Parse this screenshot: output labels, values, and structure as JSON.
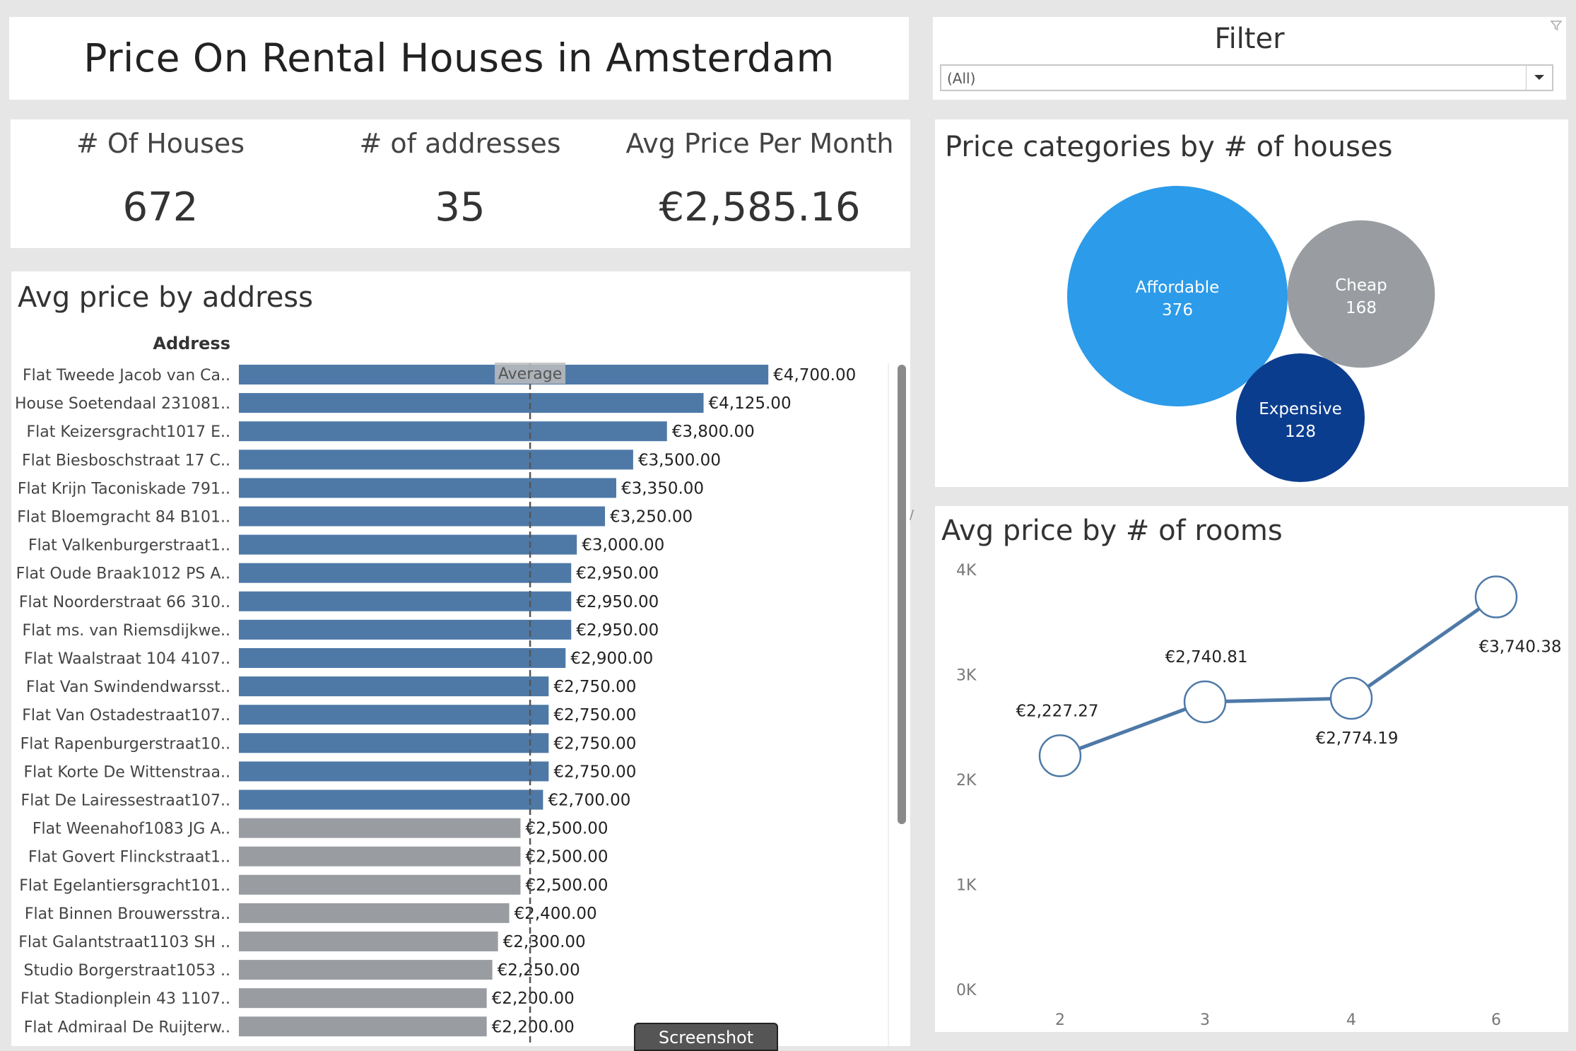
{
  "title": "Price On Rental Houses in Amsterdam",
  "filter": {
    "title": "Filter",
    "selected": "(All)",
    "icon": "filter-funnel-icon"
  },
  "kpis": [
    {
      "label": "# Of Houses",
      "value": "672"
    },
    {
      "label": "# of addresses",
      "value": "35"
    },
    {
      "label": "Avg Price Per Month",
      "value": "€2,585.16"
    }
  ],
  "bubble_title": "Price categories by # of houses",
  "bar_title": "Avg price by address",
  "line_title": "Avg price by # of rooms",
  "screenshot_button": "Screenshot",
  "colors": {
    "bar_above": "#4e79a7",
    "bar_below": "#999da2",
    "affordable": "#2c9be9",
    "cheap": "#999da2",
    "expensive": "#0b3d8f",
    "line": "#4e79a7"
  },
  "chart_data": [
    {
      "type": "bar",
      "title": "Avg price by address",
      "xlabel": "",
      "ylabel": "Address",
      "reference_line": {
        "label": "Average",
        "value": 2585.16
      },
      "xlim": [
        0,
        5000
      ],
      "categories": [
        "Flat Tweede Jacob van Ca..",
        "House Soetendaal 231081..",
        "Flat Keizersgracht1017 E..",
        "Flat Biesboschstraat 17 C..",
        "Flat Krijn Taconiskade 791..",
        "Flat Bloemgracht 84 B101..",
        "Flat Valkenburgerstraat1..",
        "Flat Oude Braak1012 PS A..",
        "Flat Noorderstraat 66 310..",
        "Flat ms. van Riemsdijkwe..",
        "Flat Waalstraat 104 4107..",
        "Flat Van Swindendwarsst..",
        "Flat Van Ostadestraat107..",
        "Flat Rapenburgerstraat10..",
        "Flat Korte De Wittenstraa..",
        "Flat De Lairessestraat107..",
        "Flat Weenahof1083 JG A..",
        "Flat Govert Flinckstraat1..",
        "Flat Egelantiersgracht101..",
        "Flat Binnen Brouwersstra..",
        "Flat Galantstraat1103 SH ..",
        "Studio Borgerstraat1053 ..",
        "Flat Stadionplein 43 1107..",
        "Flat Admiraal De Ruijterw.."
      ],
      "values": [
        4700,
        4125,
        3800,
        3500,
        3350,
        3250,
        3000,
        2950,
        2950,
        2950,
        2900,
        2750,
        2750,
        2750,
        2750,
        2700,
        2500,
        2500,
        2500,
        2400,
        2300,
        2250,
        2200,
        2200
      ],
      "value_labels": [
        "€4,700.00",
        "€4,125.00",
        "€3,800.00",
        "€3,500.00",
        "€3,350.00",
        "€3,250.00",
        "€3,000.00",
        "€2,950.00",
        "€2,950.00",
        "€2,950.00",
        "€2,900.00",
        "€2,750.00",
        "€2,750.00",
        "€2,750.00",
        "€2,750.00",
        "€2,700.00",
        "€2,500.00",
        "€2,500.00",
        "€2,500.00",
        "€2,400.00",
        "€2,300.00",
        "€2,250.00",
        "€2,200.00",
        "€2,200.00"
      ]
    },
    {
      "type": "bubble",
      "title": "Price categories by # of houses",
      "categories": [
        "Affordable",
        "Cheap",
        "Expensive"
      ],
      "values": [
        376,
        168,
        128
      ]
    },
    {
      "type": "line",
      "title": "Avg price by # of rooms",
      "x": [
        "2",
        "3",
        "4",
        "6"
      ],
      "y": [
        2227.27,
        2740.81,
        2774.19,
        3740.38
      ],
      "value_labels": [
        "€2,227.27",
        "€2,740.81",
        "€2,774.19",
        "€3,740.38"
      ],
      "y_ticks": [
        "4K",
        "3K",
        "2K",
        "1K",
        "0K"
      ],
      "ylim": [
        0,
        4000
      ]
    }
  ]
}
